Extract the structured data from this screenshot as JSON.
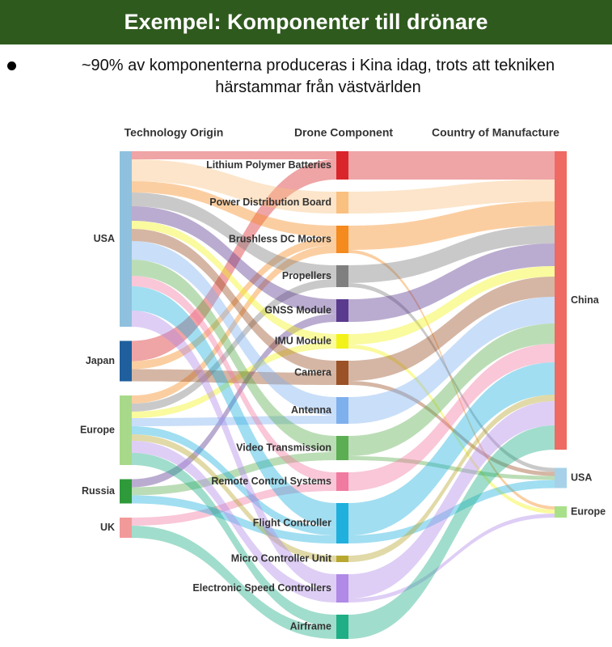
{
  "header": {
    "title": "Exempel: Komponenter till drönare"
  },
  "bullet": {
    "lines": [
      "~90% av komponenterna produceras i Kina idag, trots att tekniken",
      "härstammar från västvärlden"
    ]
  },
  "chart_data": {
    "type": "sankey",
    "column_titles": [
      "Technology Origin",
      "Drone Component",
      "Country of Manufacture"
    ],
    "nodes": [
      {
        "name": "USA",
        "color": "#8fc1de",
        "column": 0
      },
      {
        "name": "Japan",
        "color": "#1f5f9e",
        "column": 0
      },
      {
        "name": "Europe",
        "color": "#a8d98a",
        "column": 0
      },
      {
        "name": "Russia",
        "color": "#2e9a3a",
        "column": 0
      },
      {
        "name": "UK",
        "color": "#f29a9a",
        "column": 0
      },
      {
        "name": "Lithium Polymer Batteries",
        "color": "#d9262a",
        "column": 1
      },
      {
        "name": "Power Distribution Board",
        "color": "#f9c080",
        "column": 1
      },
      {
        "name": "Brushless DC Motors",
        "color": "#f58a1f",
        "column": 1
      },
      {
        "name": "Propellers",
        "color": "#7f7f7f",
        "column": 1
      },
      {
        "name": "GNSS Module",
        "color": "#5a3a8e",
        "column": 1
      },
      {
        "name": "IMU Module",
        "color": "#f2f21a",
        "column": 1
      },
      {
        "name": "Camera",
        "color": "#9a5226",
        "column": 1
      },
      {
        "name": "Antenna",
        "color": "#7fb0ee",
        "column": 1
      },
      {
        "name": "Video Transmission",
        "color": "#5cae52",
        "column": 1
      },
      {
        "name": "Remote Control Systems",
        "color": "#f07aa0",
        "column": 1
      },
      {
        "name": "Flight Controller",
        "color": "#1fb0dd",
        "column": 1
      },
      {
        "name": "Micro Controller Unit",
        "color": "#b8a830",
        "column": 1
      },
      {
        "name": "Electronic Speed Controllers",
        "color": "#b08ae6",
        "column": 1
      },
      {
        "name": "Airframe",
        "color": "#1fae86",
        "column": 1
      },
      {
        "name": "China",
        "color": "#ee6a62",
        "column": 2
      },
      {
        "name": "USA",
        "color": "#a6d1e8",
        "column": 2
      },
      {
        "name": "Europe",
        "color": "#a8e08a",
        "column": 2
      }
    ],
    "links": [
      {
        "source": 0,
        "target": 5,
        "value": 10
      },
      {
        "source": 1,
        "target": 5,
        "value": 25
      },
      {
        "source": 0,
        "target": 6,
        "value": 27
      },
      {
        "source": 0,
        "target": 7,
        "value": 14
      },
      {
        "source": 1,
        "target": 7,
        "value": 10
      },
      {
        "source": 2,
        "target": 7,
        "value": 10
      },
      {
        "source": 0,
        "target": 8,
        "value": 17
      },
      {
        "source": 2,
        "target": 8,
        "value": 10
      },
      {
        "source": 0,
        "target": 9,
        "value": 18
      },
      {
        "source": 3,
        "target": 9,
        "value": 10
      },
      {
        "source": 0,
        "target": 10,
        "value": 10
      },
      {
        "source": 2,
        "target": 10,
        "value": 8
      },
      {
        "source": 0,
        "target": 11,
        "value": 15
      },
      {
        "source": 1,
        "target": 11,
        "value": 15
      },
      {
        "source": 0,
        "target": 12,
        "value": 23
      },
      {
        "source": 2,
        "target": 12,
        "value": 10
      },
      {
        "source": 0,
        "target": 13,
        "value": 20
      },
      {
        "source": 3,
        "target": 13,
        "value": 10
      },
      {
        "source": 0,
        "target": 14,
        "value": 13
      },
      {
        "source": 4,
        "target": 14,
        "value": 10
      },
      {
        "source": 0,
        "target": 15,
        "value": 30
      },
      {
        "source": 2,
        "target": 15,
        "value": 10
      },
      {
        "source": 3,
        "target": 15,
        "value": 10
      },
      {
        "source": 2,
        "target": 16,
        "value": 8
      },
      {
        "source": 0,
        "target": 17,
        "value": 20
      },
      {
        "source": 2,
        "target": 17,
        "value": 15
      },
      {
        "source": 4,
        "target": 18,
        "value": 15
      },
      {
        "source": 2,
        "target": 18,
        "value": 15
      },
      {
        "source": 5,
        "target": 19,
        "value": 35
      },
      {
        "source": 6,
        "target": 19,
        "value": 27
      },
      {
        "source": 7,
        "target": 19,
        "value": 30
      },
      {
        "source": 7,
        "target": 21,
        "value": 4
      },
      {
        "source": 8,
        "target": 19,
        "value": 22
      },
      {
        "source": 8,
        "target": 20,
        "value": 5
      },
      {
        "source": 9,
        "target": 19,
        "value": 28
      },
      {
        "source": 10,
        "target": 19,
        "value": 13
      },
      {
        "source": 10,
        "target": 21,
        "value": 5
      },
      {
        "source": 11,
        "target": 19,
        "value": 25
      },
      {
        "source": 11,
        "target": 20,
        "value": 5
      },
      {
        "source": 12,
        "target": 19,
        "value": 33
      },
      {
        "source": 13,
        "target": 19,
        "value": 25
      },
      {
        "source": 13,
        "target": 20,
        "value": 5
      },
      {
        "source": 14,
        "target": 19,
        "value": 23
      },
      {
        "source": 15,
        "target": 19,
        "value": 40
      },
      {
        "source": 15,
        "target": 20,
        "value": 10
      },
      {
        "source": 16,
        "target": 19,
        "value": 8
      },
      {
        "source": 17,
        "target": 19,
        "value": 30
      },
      {
        "source": 17,
        "target": 21,
        "value": 5
      },
      {
        "source": 18,
        "target": 19,
        "value": 30
      }
    ]
  }
}
